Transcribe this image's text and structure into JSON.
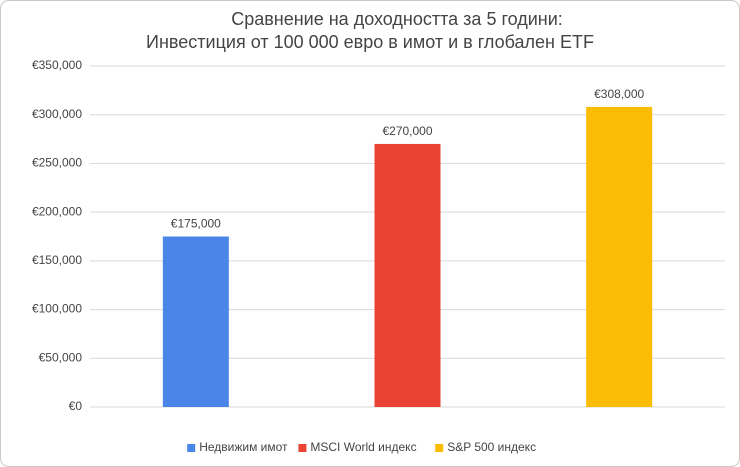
{
  "chart_data": {
    "type": "bar",
    "title": [
      "Сравнение на доходността за 5 години:",
      "Инвестиция от 100 000 евро в имот и в глобален ETF"
    ],
    "categories": [
      "Недвижим имот",
      "MSCI World индекс",
      "S&P 500 индекс"
    ],
    "values": [
      175000,
      270000,
      308000
    ],
    "value_labels": [
      "€175,000",
      "€270,000",
      "€308,000"
    ],
    "colors": [
      "#4a86e8",
      "#ea4335",
      "#fbbc04"
    ],
    "ylim": [
      0,
      350000
    ],
    "yticks": [
      {
        "value": 0,
        "label": "€0"
      },
      {
        "value": 50000,
        "label": "€50,000"
      },
      {
        "value": 100000,
        "label": "€100,000"
      },
      {
        "value": 150000,
        "label": "€150,000"
      },
      {
        "value": 200000,
        "label": "€200,000"
      },
      {
        "value": 250000,
        "label": "€250,000"
      },
      {
        "value": 300000,
        "label": "€300,000"
      },
      {
        "value": 350000,
        "label": "€350,000"
      }
    ],
    "grid": true,
    "legend": "bottom"
  }
}
